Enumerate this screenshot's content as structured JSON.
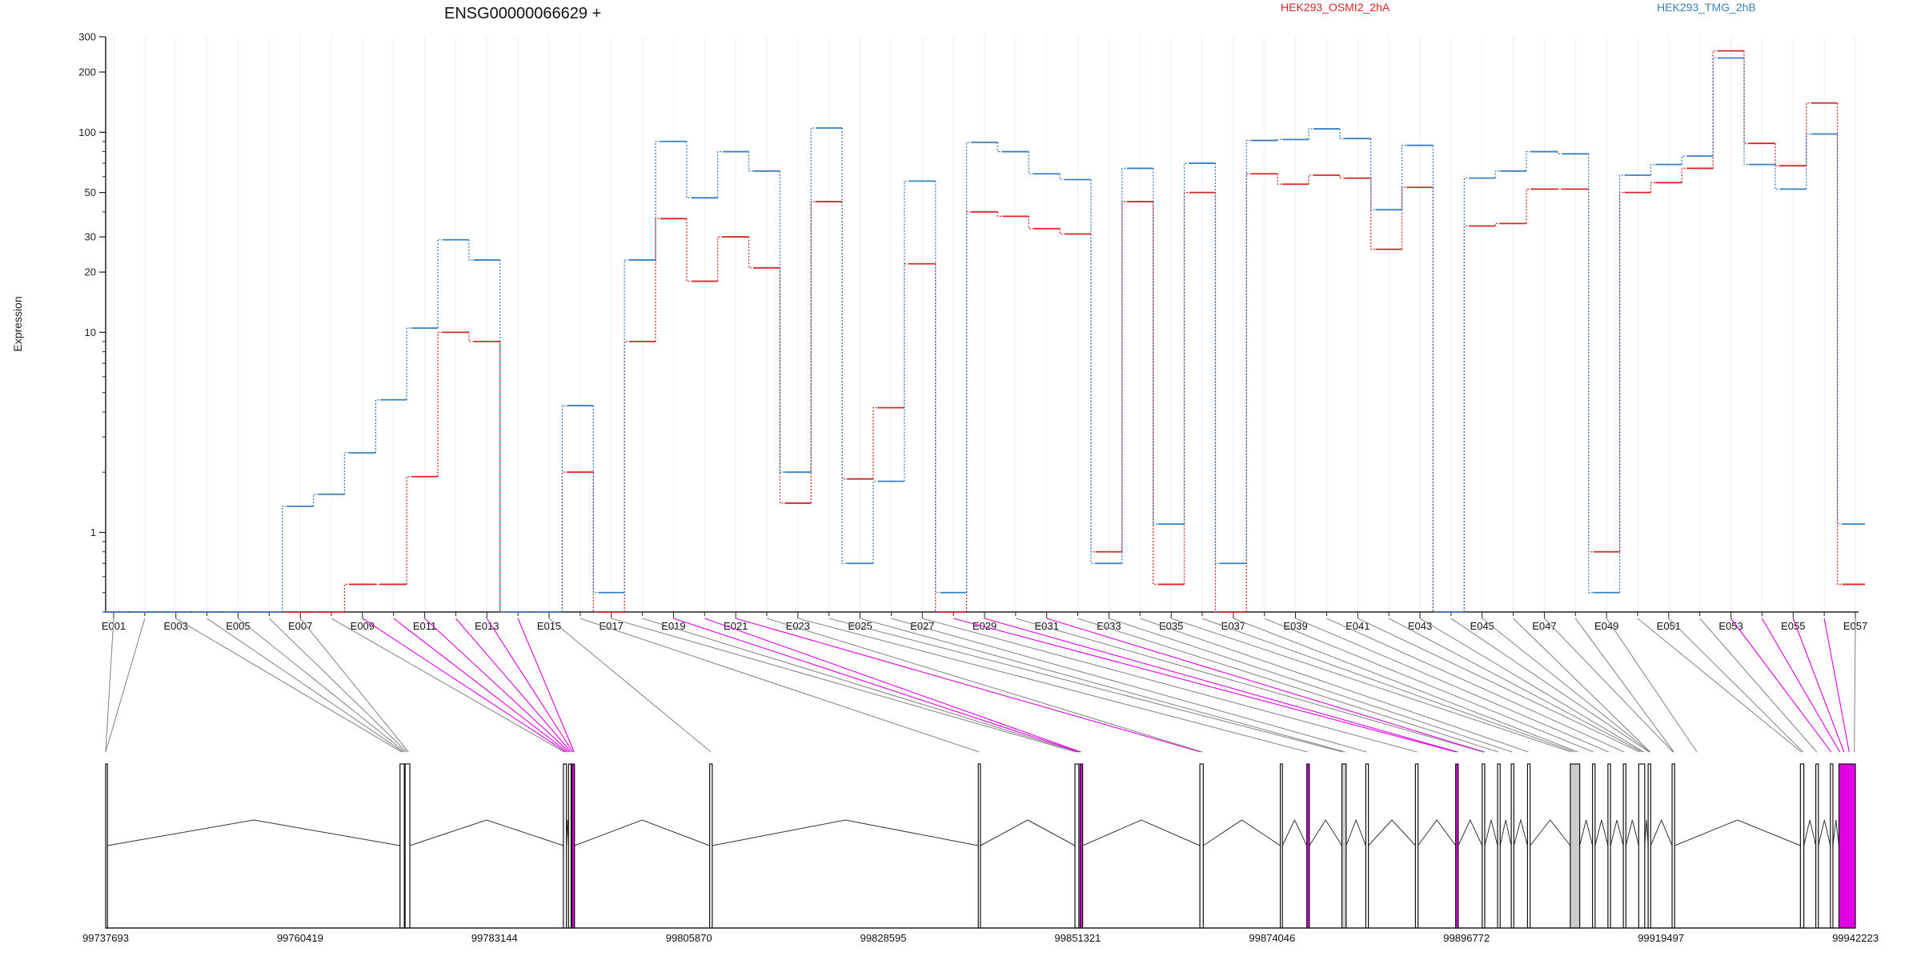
{
  "chart_data": {
    "type": "line",
    "title": "ENSG00000066629 +",
    "xlabel": "",
    "ylabel": "Expression",
    "y_scale": "log",
    "ylim": [
      0.4,
      300
    ],
    "y_ticks": [
      1,
      10,
      20,
      30,
      50,
      100,
      200,
      300
    ],
    "y_tick_labels": [
      "1",
      "10",
      "20",
      "30",
      "50",
      "100",
      "200",
      "300"
    ],
    "grid": true,
    "legend_placement": "top",
    "categories": [
      "E001",
      "E002",
      "E003",
      "E004",
      "E005",
      "E006",
      "E007",
      "E008",
      "E009",
      "E010",
      "E011",
      "E012",
      "E013",
      "E014",
      "E015",
      "E016",
      "E017",
      "E018",
      "E019",
      "E020",
      "E021",
      "E022",
      "E023",
      "E024",
      "E025",
      "E026",
      "E027",
      "E028",
      "E029",
      "E030",
      "E031",
      "E032",
      "E033",
      "E034",
      "E035",
      "E036",
      "E037",
      "E038",
      "E039",
      "E040",
      "E041",
      "E042",
      "E043",
      "E044",
      "E045",
      "E046",
      "E047",
      "E048",
      "E049",
      "E050",
      "E051",
      "E052",
      "E053",
      "E054",
      "E055",
      "E056",
      "E057"
    ],
    "labeled_categories": [
      "E001",
      "E003",
      "E005",
      "E007",
      "E009",
      "E011",
      "E013",
      "E015",
      "E017",
      "E019",
      "E021",
      "E023",
      "E025",
      "E027",
      "E029",
      "E031",
      "E033",
      "E035",
      "E037",
      "E039",
      "E041",
      "E043",
      "E045",
      "E047",
      "E049",
      "E051",
      "E053",
      "E055",
      "E057"
    ],
    "series": [
      {
        "name": "HEK293_OSMI2_2hA",
        "color": "#d62728",
        "values": [
          0.4,
          0.4,
          0.4,
          0.4,
          0.4,
          0.4,
          0.4,
          0.4,
          0.55,
          0.55,
          1.9,
          10,
          9,
          0.4,
          0.4,
          2,
          0.4,
          9,
          37,
          18,
          30,
          21,
          1.4,
          45,
          1.85,
          4.2,
          22,
          0.4,
          40,
          38,
          33,
          31,
          0.8,
          45,
          0.55,
          50,
          0.4,
          62,
          55,
          61,
          59,
          26,
          53,
          0.4,
          34,
          35,
          52,
          52,
          0.8,
          50,
          56,
          66,
          255,
          88,
          68,
          140,
          0.55
        ]
      },
      {
        "name": "HEK293_TMG_2hB",
        "color": "#3a7fbf",
        "values": [
          0.4,
          0.4,
          0.4,
          0.4,
          0.4,
          0.4,
          1.35,
          1.55,
          2.5,
          4.6,
          10.5,
          29,
          23,
          0.4,
          0.4,
          4.3,
          0.5,
          23,
          90,
          47,
          80,
          64,
          2,
          105,
          0.7,
          1.8,
          57,
          0.5,
          89,
          80,
          62,
          58,
          0.7,
          66,
          1.1,
          70,
          0.7,
          91,
          92,
          104,
          93,
          41,
          86,
          0.4,
          59,
          64,
          80,
          78,
          0.5,
          61,
          69,
          76,
          235,
          69,
          52,
          98,
          1.1
        ]
      }
    ]
  },
  "gene_track": {
    "coordinate_labels": [
      "99737693",
      "99760419",
      "99783144",
      "99805870",
      "99828595",
      "99851321",
      "99874046",
      "99896772",
      "99919497",
      "99942223"
    ],
    "coord_min": 99737693,
    "coord_max": 99942223,
    "highlight_color": "#e100e1",
    "connector_color": "#8a8a8a",
    "exons": [
      {
        "start": 99737693,
        "end": 99737900,
        "fill": "#ffffff"
      },
      {
        "start": 99772100,
        "end": 99772600,
        "fill": "#ffffff"
      },
      {
        "start": 99772700,
        "end": 99773250,
        "fill": "#ffffff"
      },
      {
        "start": 99791200,
        "end": 99791550,
        "fill": "#ffffff"
      },
      {
        "start": 99791800,
        "end": 99792100,
        "fill": "#ffffff"
      },
      {
        "start": 99792200,
        "end": 99792500,
        "fill": "#e100e1"
      },
      {
        "start": 99808300,
        "end": 99808600,
        "fill": "#ffffff"
      },
      {
        "start": 99839700,
        "end": 99839950,
        "fill": "#ffffff"
      },
      {
        "start": 99851000,
        "end": 99851450,
        "fill": "#ffffff"
      },
      {
        "start": 99851600,
        "end": 99851900,
        "fill": "#e100e1"
      },
      {
        "start": 99865600,
        "end": 99866000,
        "fill": "#ffffff"
      },
      {
        "start": 99875000,
        "end": 99875250,
        "fill": "#ffffff"
      },
      {
        "start": 99878100,
        "end": 99878400,
        "fill": "#e100e1"
      },
      {
        "start": 99882200,
        "end": 99882700,
        "fill": "#cccccc"
      },
      {
        "start": 99885000,
        "end": 99885300,
        "fill": "#ffffff"
      },
      {
        "start": 99890800,
        "end": 99891100,
        "fill": "#ffffff"
      },
      {
        "start": 99895500,
        "end": 99895800,
        "fill": "#e100e1"
      },
      {
        "start": 99898600,
        "end": 99898900,
        "fill": "#ffffff"
      },
      {
        "start": 99900400,
        "end": 99900700,
        "fill": "#ffffff"
      },
      {
        "start": 99902000,
        "end": 99902300,
        "fill": "#ffffff"
      },
      {
        "start": 99903900,
        "end": 99904200,
        "fill": "#ffffff"
      },
      {
        "start": 99908900,
        "end": 99910000,
        "fill": "#cccccc"
      },
      {
        "start": 99911500,
        "end": 99911800,
        "fill": "#ffffff"
      },
      {
        "start": 99913300,
        "end": 99913600,
        "fill": "#ffffff"
      },
      {
        "start": 99915100,
        "end": 99915400,
        "fill": "#ffffff"
      },
      {
        "start": 99916900,
        "end": 99917600,
        "fill": "#ffffff"
      },
      {
        "start": 99918000,
        "end": 99918300,
        "fill": "#ffffff"
      },
      {
        "start": 99920800,
        "end": 99921100,
        "fill": "#ffffff"
      },
      {
        "start": 99935800,
        "end": 99936200,
        "fill": "#ffffff"
      },
      {
        "start": 99937600,
        "end": 99937900,
        "fill": "#ffffff"
      },
      {
        "start": 99939300,
        "end": 99939600,
        "fill": "#ffffff"
      },
      {
        "start": 99940300,
        "end": 99942223,
        "fill": "#e100e1"
      }
    ],
    "connections": [
      {
        "exon": "E001",
        "coord": 99737693,
        "highlight": false
      },
      {
        "exon": "E002",
        "coord": 99737693,
        "highlight": false
      },
      {
        "exon": "E003",
        "coord": 99772300,
        "highlight": false
      },
      {
        "exon": "E004",
        "coord": 99772500,
        "highlight": false
      },
      {
        "exon": "E005",
        "coord": 99772700,
        "highlight": false
      },
      {
        "exon": "E006",
        "coord": 99772900,
        "highlight": false
      },
      {
        "exon": "E007",
        "coord": 99773100,
        "highlight": false
      },
      {
        "exon": "E008",
        "coord": 99791300,
        "highlight": false
      },
      {
        "exon": "E009",
        "coord": 99791500,
        "highlight": true
      },
      {
        "exon": "E010",
        "coord": 99791700,
        "highlight": true
      },
      {
        "exon": "E011",
        "coord": 99791900,
        "highlight": true
      },
      {
        "exon": "E012",
        "coord": 99792100,
        "highlight": true
      },
      {
        "exon": "E013",
        "coord": 99792300,
        "highlight": true
      },
      {
        "exon": "E014",
        "coord": 99792450,
        "highlight": true
      },
      {
        "exon": "E015",
        "coord": 99808450,
        "highlight": false
      },
      {
        "exon": "E016",
        "coord": 99839800,
        "highlight": false
      },
      {
        "exon": "E017",
        "coord": 99851100,
        "highlight": false
      },
      {
        "exon": "E018",
        "coord": 99851300,
        "highlight": false
      },
      {
        "exon": "E019",
        "coord": 99851500,
        "highlight": true
      },
      {
        "exon": "E020",
        "coord": 99851700,
        "highlight": true
      },
      {
        "exon": "E021",
        "coord": 99865700,
        "highlight": true
      },
      {
        "exon": "E022",
        "coord": 99865900,
        "highlight": false
      },
      {
        "exon": "E023",
        "coord": 99878200,
        "highlight": false
      },
      {
        "exon": "E024",
        "coord": 99882300,
        "highlight": false
      },
      {
        "exon": "E025",
        "coord": 99882600,
        "highlight": false
      },
      {
        "exon": "E026",
        "coord": 99885100,
        "highlight": false
      },
      {
        "exon": "E027",
        "coord": 99891000,
        "highlight": false
      },
      {
        "exon": "E028",
        "coord": 99895550,
        "highlight": true
      },
      {
        "exon": "E029",
        "coord": 99895750,
        "highlight": true
      },
      {
        "exon": "E030",
        "coord": 99898700,
        "highlight": false
      },
      {
        "exon": "E031",
        "coord": 99898850,
        "highlight": true
      },
      {
        "exon": "E032",
        "coord": 99900500,
        "highlight": false
      },
      {
        "exon": "E033",
        "coord": 99902100,
        "highlight": false
      },
      {
        "exon": "E034",
        "coord": 99904000,
        "highlight": false
      },
      {
        "exon": "E035",
        "coord": 99909000,
        "highlight": false
      },
      {
        "exon": "E036",
        "coord": 99909400,
        "highlight": false
      },
      {
        "exon": "E037",
        "coord": 99909800,
        "highlight": false
      },
      {
        "exon": "E038",
        "coord": 99911600,
        "highlight": false
      },
      {
        "exon": "E039",
        "coord": 99913400,
        "highlight": false
      },
      {
        "exon": "E040",
        "coord": 99915200,
        "highlight": false
      },
      {
        "exon": "E041",
        "coord": 99917000,
        "highlight": false
      },
      {
        "exon": "E042",
        "coord": 99917300,
        "highlight": false
      },
      {
        "exon": "E043",
        "coord": 99917500,
        "highlight": false
      },
      {
        "exon": "E044",
        "coord": 99918100,
        "highlight": false
      },
      {
        "exon": "E045",
        "coord": 99918200,
        "highlight": false
      },
      {
        "exon": "E046",
        "coord": 99918250,
        "highlight": false
      },
      {
        "exon": "E047",
        "coord": 99920900,
        "highlight": false
      },
      {
        "exon": "E048",
        "coord": 99921000,
        "highlight": false
      },
      {
        "exon": "E049",
        "coord": 99923700,
        "highlight": false
      },
      {
        "exon": "E050",
        "coord": 99935900,
        "highlight": false
      },
      {
        "exon": "E051",
        "coord": 99936100,
        "highlight": false
      },
      {
        "exon": "E052",
        "coord": 99937700,
        "highlight": false
      },
      {
        "exon": "E053",
        "coord": 99939400,
        "highlight": true
      },
      {
        "exon": "E054",
        "coord": 99940400,
        "highlight": true
      },
      {
        "exon": "E055",
        "coord": 99940900,
        "highlight": true
      },
      {
        "exon": "E056",
        "coord": 99941500,
        "highlight": true
      },
      {
        "exon": "E057",
        "coord": 99942100,
        "highlight": false
      }
    ]
  }
}
